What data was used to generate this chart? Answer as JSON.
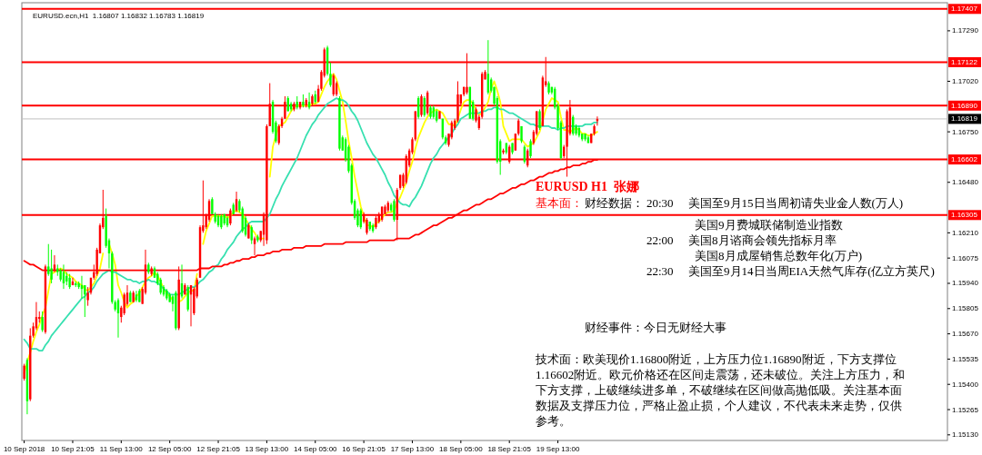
{
  "chart_data": {
    "type": "candlestick",
    "title": "EURUSD.ecn,H1  1.16807 1.16832 1.16783 1.16819",
    "categories": [
      "10 Sep 2018",
      null,
      null,
      null,
      null,
      null,
      null,
      null,
      null,
      null,
      null,
      null,
      null,
      null,
      null,
      null,
      "10 Sep 21:05",
      null,
      null,
      null,
      null,
      null,
      null,
      null,
      null,
      null,
      null,
      null,
      null,
      null,
      null,
      null,
      "11 Sep 13:00",
      null,
      null,
      null,
      null,
      null,
      null,
      null,
      null,
      null,
      null,
      null,
      null,
      null,
      null,
      null,
      "12 Sep 05:00",
      null,
      null,
      null,
      null,
      null,
      null,
      null,
      null,
      null,
      null,
      null,
      null,
      null,
      null,
      null,
      "12 Sep 21:05",
      null,
      null,
      null,
      null,
      null,
      null,
      null,
      null,
      null,
      null,
      null,
      null,
      null,
      null,
      null,
      "13 Sep 13:00",
      null,
      null,
      null,
      null,
      null,
      null,
      null,
      null,
      null,
      null,
      null,
      null,
      null,
      null,
      null,
      "14 Sep 05:00",
      null,
      null,
      null,
      null,
      null,
      null,
      null,
      null,
      null,
      null,
      null,
      null,
      null,
      null,
      null,
      "16 Sep 21:05",
      null,
      null,
      null,
      null,
      null,
      null,
      null,
      null,
      null,
      null,
      null,
      null,
      null,
      null,
      null,
      "17 Sep 13:00",
      null,
      null,
      null,
      null,
      null,
      null,
      null,
      null,
      null,
      null,
      null,
      null,
      null,
      null,
      null,
      "18 Sep 05:00",
      null,
      null,
      null,
      null,
      null,
      null,
      null,
      null,
      null,
      null,
      null,
      null,
      null,
      null,
      null,
      "18 Sep 21:05",
      null,
      null,
      null,
      null,
      null,
      null,
      null,
      null,
      null,
      null,
      null,
      null,
      null,
      null,
      null,
      "19 Sep 13:00",
      null,
      null,
      null,
      null,
      null,
      null,
      null,
      null,
      null,
      null,
      null,
      null,
      null
    ],
    "ohlc": [
      [
        1.1543,
        1.1551,
        1.1542,
        1.155
      ],
      [
        1.1553,
        1.1554,
        1.1524,
        1.1531
      ],
      [
        1.1532,
        1.157,
        1.1531,
        1.1566
      ],
      [
        1.1566,
        1.1573,
        1.1565,
        1.1571
      ],
      [
        1.157,
        1.1584,
        1.1569,
        1.1576
      ],
      [
        1.1575,
        1.1579,
        1.1573,
        1.1576
      ],
      [
        1.1576,
        1.1579,
        1.1568,
        1.1569
      ],
      [
        1.1568,
        1.1604,
        1.1567,
        1.1603
      ],
      [
        1.1603,
        1.1615,
        1.1598,
        1.1599
      ],
      [
        1.1602,
        1.1612,
        1.1594,
        1.1596
      ],
      [
        1.1601,
        1.1609,
        1.16,
        1.1604
      ],
      [
        1.1602,
        1.1604,
        1.1598,
        1.16
      ],
      [
        1.1601,
        1.1602,
        1.1595,
        1.1596
      ],
      [
        1.16,
        1.1604,
        1.1591,
        1.1594
      ],
      [
        1.1598,
        1.16,
        1.1593,
        1.1595
      ],
      [
        1.1597,
        1.1599,
        1.1591,
        1.1592
      ],
      [
        1.1593,
        1.1597,
        1.1593,
        1.1595
      ],
      [
        1.1594,
        1.1595,
        1.1592,
        1.1593
      ],
      [
        1.1594,
        1.1595,
        1.1591,
        1.1592
      ],
      [
        1.1593,
        1.1598,
        1.1586,
        1.1591
      ],
      [
        1.1593,
        1.1593,
        1.1576,
        1.1588
      ],
      [
        1.1585,
        1.1592,
        1.1582,
        1.1589
      ],
      [
        1.1589,
        1.1597,
        1.1588,
        1.1597
      ],
      [
        1.1597,
        1.1604,
        1.1596,
        1.16
      ],
      [
        1.1599,
        1.1613,
        1.1598,
        1.1612
      ],
      [
        1.161,
        1.1626,
        1.161,
        1.1625
      ],
      [
        1.1624,
        1.1644,
        1.1623,
        1.1629
      ],
      [
        1.163,
        1.1634,
        1.1613,
        1.1614
      ],
      [
        1.1617,
        1.1618,
        1.1602,
        1.161
      ],
      [
        1.161,
        1.1611,
        1.1583,
        1.1584
      ],
      [
        1.1584,
        1.1585,
        1.1579,
        1.158
      ],
      [
        1.1585,
        1.1586,
        1.1565,
        1.1578
      ],
      [
        1.1576,
        1.1582,
        1.1573,
        1.1581
      ],
      [
        1.1578,
        1.1589,
        1.1577,
        1.1588
      ],
      [
        1.1583,
        1.1593,
        1.1582,
        1.1589
      ],
      [
        1.1589,
        1.159,
        1.1584,
        1.1584
      ],
      [
        1.1584,
        1.159,
        1.1584,
        1.1589
      ],
      [
        1.1588,
        1.159,
        1.1584,
        1.1585
      ],
      [
        1.159,
        1.1591,
        1.1584,
        1.1584
      ],
      [
        1.1583,
        1.1592,
        1.1583,
        1.1591
      ],
      [
        1.1589,
        1.1612,
        1.1588,
        1.1604
      ],
      [
        1.1604,
        1.1605,
        1.1599,
        1.16
      ],
      [
        1.1599,
        1.1603,
        1.1598,
        1.1602
      ],
      [
        1.1602,
        1.1603,
        1.1597,
        1.1597
      ],
      [
        1.1599,
        1.16,
        1.1593,
        1.1594
      ],
      [
        1.1596,
        1.1597,
        1.1588,
        1.1589
      ],
      [
        1.1592,
        1.1593,
        1.1587,
        1.1588
      ],
      [
        1.159,
        1.1591,
        1.1585,
        1.1586
      ],
      [
        1.1588,
        1.1589,
        1.1584,
        1.1584
      ],
      [
        1.1587,
        1.1588,
        1.1579,
        1.1583
      ],
      [
        1.1589,
        1.159,
        1.1569,
        1.157
      ],
      [
        1.157,
        1.1603,
        1.1569,
        1.1596
      ],
      [
        1.1594,
        1.1604,
        1.1586,
        1.1587
      ],
      [
        1.1588,
        1.1594,
        1.1588,
        1.1593
      ],
      [
        1.1592,
        1.1593,
        1.1579,
        1.158
      ],
      [
        1.1588,
        1.1593,
        1.1571,
        1.1593
      ],
      [
        1.1578,
        1.1592,
        1.1577,
        1.1591
      ],
      [
        1.1587,
        1.1597,
        1.1586,
        1.1596
      ],
      [
        1.1597,
        1.1625,
        1.1597,
        1.1624
      ],
      [
        1.1622,
        1.1649,
        1.1621,
        1.1625
      ],
      [
        1.1624,
        1.1631,
        1.1623,
        1.1631
      ],
      [
        1.1628,
        1.1639,
        1.1627,
        1.1638
      ],
      [
        1.1639,
        1.164,
        1.1631,
        1.1631
      ],
      [
        1.1631,
        1.1632,
        1.1626,
        1.1627
      ],
      [
        1.163,
        1.1631,
        1.1624,
        1.1625
      ],
      [
        1.163,
        1.1631,
        1.1623,
        1.1624
      ],
      [
        1.1631,
        1.1631,
        1.1625,
        1.1626
      ],
      [
        1.1629,
        1.163,
        1.1624,
        1.1625
      ],
      [
        1.1626,
        1.1634,
        1.1625,
        1.1633
      ],
      [
        1.1636,
        1.1637,
        1.1631,
        1.1631
      ],
      [
        1.1633,
        1.1643,
        1.1632,
        1.1639
      ],
      [
        1.1638,
        1.1639,
        1.1632,
        1.1633
      ],
      [
        1.1634,
        1.1635,
        1.1621,
        1.1622
      ],
      [
        1.1629,
        1.163,
        1.1619,
        1.162
      ],
      [
        1.1618,
        1.1626,
        1.1618,
        1.1625
      ],
      [
        1.1624,
        1.1625,
        1.1615,
        1.1617
      ],
      [
        1.1615,
        1.1619,
        1.1609,
        1.1618
      ],
      [
        1.1619,
        1.162,
        1.1616,
        1.1617
      ],
      [
        1.1617,
        1.1622,
        1.1616,
        1.1622
      ],
      [
        1.162,
        1.1632,
        1.1614,
        1.1631
      ],
      [
        1.1617,
        1.1679,
        1.1615,
        1.1678
      ],
      [
        1.1678,
        1.1701,
        1.1678,
        1.169
      ],
      [
        1.1691,
        1.1692,
        1.1674,
        1.1675
      ],
      [
        1.168,
        1.1681,
        1.1669,
        1.167
      ],
      [
        1.1669,
        1.1679,
        1.1668,
        1.1678
      ],
      [
        1.1678,
        1.1683,
        1.1677,
        1.1682
      ],
      [
        1.1682,
        1.1694,
        1.1682,
        1.1691
      ],
      [
        1.1693,
        1.1694,
        1.1686,
        1.1686
      ],
      [
        1.169,
        1.1691,
        1.1686,
        1.1687
      ],
      [
        1.1687,
        1.1691,
        1.1686,
        1.169
      ],
      [
        1.1691,
        1.1694,
        1.1687,
        1.1688
      ],
      [
        1.1688,
        1.1691,
        1.1687,
        1.1691
      ],
      [
        1.1691,
        1.1695,
        1.1688,
        1.1689
      ],
      [
        1.1689,
        1.1693,
        1.1688,
        1.1692
      ],
      [
        1.1691,
        1.1696,
        1.1687,
        1.1688
      ],
      [
        1.169,
        1.1695,
        1.1689,
        1.1694
      ],
      [
        1.1695,
        1.1697,
        1.169,
        1.1691
      ],
      [
        1.1691,
        1.17,
        1.1691,
        1.1698
      ],
      [
        1.1698,
        1.1708,
        1.1697,
        1.1707
      ],
      [
        1.1705,
        1.172,
        1.1704,
        1.1719
      ],
      [
        1.172,
        1.1721,
        1.1705,
        1.1706
      ],
      [
        1.1706,
        1.1712,
        1.1699,
        1.17
      ],
      [
        1.1695,
        1.1706,
        1.1694,
        1.1705
      ],
      [
        1.1695,
        1.1702,
        1.1694,
        1.1701
      ],
      [
        1.1693,
        1.1694,
        1.1665,
        1.1666
      ],
      [
        1.1672,
        1.1673,
        1.1665,
        1.1665
      ],
      [
        1.1671,
        1.1672,
        1.1659,
        1.166
      ],
      [
        1.1667,
        1.1668,
        1.1653,
        1.1654
      ],
      [
        1.1657,
        1.1658,
        1.1636,
        1.1637
      ],
      [
        1.1638,
        1.1639,
        1.1628,
        1.1629
      ],
      [
        1.1633,
        1.1634,
        1.1624,
        1.1625
      ],
      [
        1.1633,
        1.1634,
        1.1623,
        1.1624
      ],
      [
        1.1627,
        1.1632,
        1.1626,
        1.1631
      ],
      [
        1.1621,
        1.1629,
        1.162,
        1.1628
      ],
      [
        1.1627,
        1.1627,
        1.1622,
        1.1623
      ],
      [
        1.1625,
        1.1626,
        1.1621,
        1.1622
      ],
      [
        1.1624,
        1.163,
        1.1623,
        1.1629
      ],
      [
        1.1627,
        1.1632,
        1.1626,
        1.1631
      ],
      [
        1.1628,
        1.1635,
        1.1627,
        1.1635
      ],
      [
        1.1631,
        1.1636,
        1.1631,
        1.1635
      ],
      [
        1.1633,
        1.1638,
        1.1632,
        1.1637
      ],
      [
        1.1636,
        1.1637,
        1.1632,
        1.1633
      ],
      [
        1.1638,
        1.1639,
        1.1627,
        1.1628
      ],
      [
        1.1628,
        1.1645,
        1.1617,
        1.1644
      ],
      [
        1.1645,
        1.1652,
        1.1644,
        1.1652
      ],
      [
        1.1646,
        1.1653,
        1.1645,
        1.1652
      ],
      [
        1.1648,
        1.1663,
        1.1647,
        1.1662
      ],
      [
        1.1657,
        1.1666,
        1.1656,
        1.1665
      ],
      [
        1.1664,
        1.1672,
        1.1663,
        1.1671
      ],
      [
        1.1671,
        1.1686,
        1.167,
        1.1686
      ],
      [
        1.1693,
        1.1694,
        1.1682,
        1.1683
      ],
      [
        1.1684,
        1.1695,
        1.1683,
        1.1694
      ],
      [
        1.1693,
        1.1694,
        1.1683,
        1.1684
      ],
      [
        1.1685,
        1.1697,
        1.1684,
        1.1696
      ],
      [
        1.1688,
        1.1689,
        1.1682,
        1.1683
      ],
      [
        1.1688,
        1.1689,
        1.1682,
        1.1683
      ],
      [
        1.1686,
        1.1687,
        1.168,
        1.1681
      ],
      [
        1.1682,
        1.1686,
        1.1682,
        1.1686
      ],
      [
        1.1682,
        1.1682,
        1.1671,
        1.1672
      ],
      [
        1.1672,
        1.1673,
        1.1668,
        1.1669
      ],
      [
        1.1668,
        1.1674,
        1.1667,
        1.1674
      ],
      [
        1.1672,
        1.1681,
        1.1671,
        1.168
      ],
      [
        1.1677,
        1.1682,
        1.1676,
        1.1681
      ],
      [
        1.1681,
        1.1702,
        1.168,
        1.1695
      ],
      [
        1.169,
        1.1695,
        1.1689,
        1.1695
      ],
      [
        1.1695,
        1.1699,
        1.1694,
        1.1699
      ],
      [
        1.1696,
        1.1717,
        1.1695,
        1.1699
      ],
      [
        1.1699,
        1.1699,
        1.1682,
        1.1682
      ],
      [
        1.1691,
        1.1692,
        1.1681,
        1.1682
      ],
      [
        1.1681,
        1.1688,
        1.168,
        1.1687
      ],
      [
        1.1677,
        1.1684,
        1.1676,
        1.1683
      ],
      [
        1.1683,
        1.1707,
        1.1682,
        1.1706
      ],
      [
        1.1703,
        1.1708,
        1.1703,
        1.1707
      ],
      [
        1.1706,
        1.1724,
        1.1695,
        1.1696
      ],
      [
        1.1703,
        1.1704,
        1.1696,
        1.1697
      ],
      [
        1.1699,
        1.1699,
        1.1689,
        1.169
      ],
      [
        1.1693,
        1.1694,
        1.1658,
        1.1659
      ],
      [
        1.167,
        1.1671,
        1.1652,
        1.1659
      ],
      [
        1.1664,
        1.1666,
        1.1663,
        1.1665
      ],
      [
        1.1669,
        1.1669,
        1.1663,
        1.1664
      ],
      [
        1.1659,
        1.1668,
        1.1658,
        1.1667
      ],
      [
        1.1669,
        1.1669,
        1.1663,
        1.1664
      ],
      [
        1.1665,
        1.1674,
        1.1665,
        1.1674
      ],
      [
        1.1674,
        1.1682,
        1.1673,
        1.1681
      ],
      [
        1.1678,
        1.1678,
        1.1669,
        1.167
      ],
      [
        1.1667,
        1.1668,
        1.1658,
        1.1659
      ],
      [
        1.1657,
        1.1666,
        1.1656,
        1.1665
      ],
      [
        1.167,
        1.1671,
        1.1661,
        1.1662
      ],
      [
        1.1669,
        1.1676,
        1.1668,
        1.1675
      ],
      [
        1.1674,
        1.1686,
        1.1673,
        1.1686
      ],
      [
        1.1686,
        1.1687,
        1.1676,
        1.1677
      ],
      [
        1.1678,
        1.1705,
        1.1678,
        1.1704
      ],
      [
        1.17,
        1.1715,
        1.1699,
        1.1702
      ],
      [
        1.1701,
        1.1702,
        1.1695,
        1.1696
      ],
      [
        1.1699,
        1.1699,
        1.1695,
        1.1696
      ],
      [
        1.1698,
        1.1699,
        1.1687,
        1.1688
      ],
      [
        1.1689,
        1.169,
        1.1676,
        1.1677
      ],
      [
        1.168,
        1.1681,
        1.166,
        1.1661
      ],
      [
        1.1662,
        1.1668,
        1.1661,
        1.1667
      ],
      [
        1.1667,
        1.1687,
        1.1651,
        1.1686
      ],
      [
        1.1674,
        1.1692,
        1.1673,
        1.1688
      ],
      [
        1.1683,
        1.1684,
        1.1673,
        1.1674
      ],
      [
        1.1678,
        1.1679,
        1.1673,
        1.1674
      ],
      [
        1.1677,
        1.1678,
        1.1672,
        1.1673
      ],
      [
        1.1674,
        1.1674,
        1.167,
        1.1671
      ],
      [
        1.1674,
        1.1674,
        1.167,
        1.1671
      ],
      [
        1.1672,
        1.1673,
        1.1669,
        1.1669
      ],
      [
        1.1669,
        1.1674,
        1.1669,
        1.1674
      ],
      [
        1.1674,
        1.1679,
        1.1673,
        1.1678
      ],
      [
        1.16807,
        1.16832,
        1.16783,
        1.16819
      ]
    ],
    "colors": [
      "#ff0000",
      "#00ff00",
      "#ff0000",
      "#ff0000",
      "#ff0000",
      "#ff0000",
      "#00ff00",
      "#ff0000",
      "#00ff00",
      "#00ff00",
      "#ff0000",
      "#00ff00",
      "#00ff00",
      "#00ff00",
      "#00ff00",
      "#00ff00",
      "#ff0000",
      "#00ff00",
      "#00ff00",
      "#00ff00",
      "#00ff00",
      "#ff0000",
      "#ff0000",
      "#ff0000",
      "#ff0000",
      "#ff0000",
      "#ff0000",
      "#00ff00",
      "#00ff00",
      "#00ff00",
      "#00ff00",
      "#00ff00",
      "#ff0000",
      "#ff0000",
      "#ff0000",
      "#00ff00",
      "#ff0000",
      "#00ff00",
      "#00ff00",
      "#ff0000",
      "#ff0000",
      "#00ff00",
      "#ff0000",
      "#00ff00",
      "#00ff00",
      "#00ff00",
      "#00ff00",
      "#00ff00",
      "#00ff00",
      "#00ff00",
      "#00ff00",
      "#ff0000",
      "#00ff00",
      "#ff0000",
      "#00ff00",
      "#ff0000",
      "#ff0000",
      "#ff0000",
      "#ff0000",
      "#ff0000",
      "#ff0000",
      "#ff0000",
      "#00ff00",
      "#00ff00",
      "#00ff00",
      "#00ff00",
      "#00ff00",
      "#00ff00",
      "#ff0000",
      "#00ff00",
      "#ff0000",
      "#00ff00",
      "#00ff00",
      "#00ff00",
      "#ff0000",
      "#00ff00",
      "#ff0000",
      "#00ff00",
      "#ff0000",
      "#ff0000",
      "#ff0000",
      "#ff0000",
      "#00ff00",
      "#00ff00",
      "#ff0000",
      "#ff0000",
      "#ff0000",
      "#00ff00",
      "#00ff00",
      "#ff0000",
      "#00ff00",
      "#ff0000",
      "#00ff00",
      "#ff0000",
      "#00ff00",
      "#ff0000",
      "#00ff00",
      "#ff0000",
      "#ff0000",
      "#ff0000",
      "#00ff00",
      "#00ff00",
      "#ff0000",
      "#ff0000",
      "#00ff00",
      "#00ff00",
      "#00ff00",
      "#00ff00",
      "#00ff00",
      "#00ff00",
      "#00ff00",
      "#00ff00",
      "#ff0000",
      "#ff0000",
      "#00ff00",
      "#00ff00",
      "#ff0000",
      "#ff0000",
      "#ff0000",
      "#ff0000",
      "#ff0000",
      "#00ff00",
      "#00ff00",
      "#ff0000",
      "#ff0000",
      "#ff0000",
      "#ff0000",
      "#ff0000",
      "#ff0000",
      "#ff0000",
      "#00ff00",
      "#ff0000",
      "#00ff00",
      "#ff0000",
      "#00ff00",
      "#00ff00",
      "#00ff00",
      "#ff0000",
      "#00ff00",
      "#00ff00",
      "#ff0000",
      "#ff0000",
      "#ff0000",
      "#ff0000",
      "#ff0000",
      "#ff0000",
      "#ff0000",
      "#00ff00",
      "#00ff00",
      "#ff0000",
      "#ff0000",
      "#ff0000",
      "#ff0000",
      "#00ff00",
      "#00ff00",
      "#00ff00",
      "#00ff00",
      "#00ff00",
      "#ff0000",
      "#00ff00",
      "#ff0000",
      "#00ff00",
      "#ff0000",
      "#ff0000",
      "#00ff00",
      "#00ff00",
      "#ff0000",
      "#00ff00",
      "#ff0000",
      "#ff0000",
      "#00ff00",
      "#ff0000",
      "#ff0000",
      "#00ff00",
      "#00ff00",
      "#00ff00",
      "#00ff00",
      "#00ff00",
      "#ff0000",
      "#ff0000",
      "#ff0000",
      "#00ff00",
      "#00ff00",
      "#00ff00",
      "#00ff00",
      "#00ff00",
      "#00ff00",
      "#ff0000",
      "#ff0000",
      "#ff0000"
    ],
    "series": [
      {
        "type": "line",
        "color": "#ffff00",
        "values": [
          1.1546,
          1.1552,
          1.1557,
          1.1563,
          1.1568,
          1.1572,
          1.1577,
          1.1581,
          1.159,
          1.1599,
          1.16,
          1.1601,
          1.1602,
          1.1601,
          1.1599,
          1.1598,
          1.1597,
          1.1595,
          1.1594,
          1.1593,
          1.1591,
          1.159,
          1.1592,
          1.1594,
          1.1598,
          1.1602,
          1.161,
          null,
          1.1615,
          1.161,
          1.1604,
          1.1593,
          1.1589,
          1.1584,
          1.1581,
          1.1583,
          1.1584,
          1.1587,
          1.1589,
          1.1592,
          1.1595,
          1.1597,
          1.1598,
          1.16,
          1.1598,
          1.1595,
          1.1591,
          1.1589,
          1.1587,
          1.1585,
          null,
          1.1584,
          1.1585,
          1.1587,
          1.1589,
          1.159,
          1.159,
          1.1599,
          null,
          1.1615,
          1.1622,
          1.1626,
          1.163,
          1.163,
          1.163,
          1.163,
          1.163,
          1.1629,
          1.163,
          1.1632,
          1.1633,
          1.1632,
          1.1631,
          1.1628,
          1.1626,
          1.1623,
          1.1621,
          1.1618,
          1.1618,
          1.1618,
          null,
          1.1651,
          1.1667,
          1.1673,
          1.1678,
          1.1679,
          1.168,
          1.1683,
          1.1686,
          1.1688,
          1.1689,
          1.1689,
          1.1689,
          1.1689,
          1.1689,
          1.169,
          1.169,
          1.1691,
          1.1695,
          1.1699,
          1.1702,
          1.1704,
          1.1706,
          1.1703,
          1.1697,
          1.1691,
          1.1681,
          1.167,
          1.1661,
          1.1651,
          1.1643,
          1.1635,
          1.163,
          1.1625,
          1.1625,
          1.1624,
          1.1626,
          1.1627,
          1.1629,
          1.1631,
          1.1632,
          1.1632,
          1.1633,
          1.1637,
          1.164,
          1.1644,
          1.1648,
          1.1654,
          1.1659,
          1.1666,
          1.1672,
          1.1676,
          1.168,
          1.1683,
          1.1685,
          1.1686,
          1.1687,
          1.1686,
          1.1685,
          1.1682,
          1.1679,
          1.1679,
          1.1678,
          1.1682,
          1.1687,
          1.1691,
          1.1692,
          1.1692,
          1.169,
          1.1687,
          1.1684,
          1.1685,
          1.1688,
          1.1691,
          1.1698,
          1.1702,
          1.1697,
          1.1691,
          1.1678,
          1.1674,
          1.167,
          1.1671,
          1.1671,
          1.1671,
          1.1671,
          1.1669,
          1.1667,
          1.1668,
          1.1669,
          1.1672,
          1.1675,
          1.1681,
          1.1687,
          1.169,
          1.1693,
          1.1692,
          1.1691,
          1.1683,
          1.1676,
          1.1676,
          1.1675,
          1.1676,
          1.1677,
          1.1676,
          1.1674,
          1.1674,
          1.1673,
          1.1673,
          1.1674,
          1.1675
        ]
      },
      {
        "type": "line",
        "color": "#36e0b0",
        "values": [
          1.1564,
          1.1562,
          1.1559,
          1.1559,
          1.1559,
          1.1558,
          1.1558,
          1.1561,
          1.1563,
          1.1566,
          1.1568,
          1.157,
          1.1572,
          1.1574,
          1.1576,
          1.1578,
          1.158,
          1.1582,
          1.1584,
          1.1586,
          1.1587,
          1.1589,
          1.159,
          1.1592,
          1.1595,
          1.1597,
          1.1599,
          1.16,
          1.1601,
          1.16,
          1.16,
          1.1599,
          1.1598,
          1.1597,
          1.1596,
          1.1596,
          1.1595,
          1.1595,
          1.1594,
          1.1595,
          1.1595,
          1.1596,
          1.1595,
          1.1595,
          1.1594,
          1.1593,
          1.1591,
          1.159,
          1.1588,
          1.1588,
          1.1588,
          1.1588,
          1.1589,
          1.159,
          1.1591,
          1.1592,
          1.1592,
          1.1593,
          1.1595,
          1.1596,
          1.1598,
          1.16,
          1.1601,
          1.1603,
          1.1604,
          1.1607,
          1.1609,
          1.1612,
          1.1614,
          1.1616,
          1.1619,
          1.1621,
          1.1623,
          1.1624,
          1.1626,
          1.1627,
          1.1627,
          1.1627,
          1.1627,
          1.1627,
          1.1629,
          1.1631,
          1.1635,
          1.1639,
          1.1642,
          1.1646,
          1.1649,
          1.1652,
          1.1655,
          1.1658,
          1.1661,
          1.1665,
          1.1669,
          1.1673,
          1.1676,
          1.1679,
          1.1681,
          1.1684,
          1.1686,
          1.1688,
          1.169,
          1.1691,
          1.1692,
          1.1693,
          1.1692,
          1.1692,
          1.1691,
          1.1689,
          1.1686,
          1.1684,
          1.1681,
          1.1677,
          1.1673,
          1.1669,
          1.1666,
          1.1663,
          1.1661,
          1.1658,
          1.1655,
          1.1652,
          1.1648,
          1.1645,
          1.1641,
          1.1639,
          1.1637,
          1.1636,
          1.1636,
          1.1635,
          1.1638,
          1.164,
          1.1643,
          1.1646,
          1.165,
          1.1654,
          1.1658,
          1.1661,
          1.1663,
          1.1666,
          1.1668,
          1.167,
          1.1672,
          1.1674,
          1.1677,
          1.1679,
          1.1682,
          1.1683,
          1.1684,
          1.1685,
          1.1685,
          1.1685,
          1.1685,
          1.1686,
          1.1686,
          1.1687,
          1.1687,
          1.1688,
          1.1688,
          1.1687,
          1.1687,
          1.1686,
          1.1685,
          1.1685,
          1.1684,
          1.1683,
          1.1682,
          1.1681,
          1.168,
          1.1679,
          1.1679,
          1.1678,
          1.1678,
          1.1678,
          1.1678,
          1.1678,
          1.1677,
          1.1677,
          1.1676,
          1.1677,
          1.1677,
          1.1678,
          1.1678,
          1.1678,
          1.1678,
          1.1678,
          1.1678,
          1.1679,
          1.1679,
          1.1679,
          1.168,
          1.168
        ]
      },
      {
        "type": "line",
        "color": "#ff0000",
        "values": [
          1.1606,
          1.1605,
          1.1604,
          1.1604,
          1.1603,
          1.1602,
          1.1601,
          1.1601,
          1.1601,
          1.1601,
          1.1601,
          1.1601,
          1.1601,
          1.1601,
          1.1601,
          1.1601,
          1.1601,
          1.1601,
          1.1601,
          1.1601,
          1.1601,
          1.1601,
          1.1601,
          1.1601,
          1.1601,
          1.1601,
          1.1601,
          1.1601,
          1.1601,
          1.1601,
          1.1601,
          1.1601,
          1.1601,
          1.1601,
          1.1601,
          1.1601,
          1.1601,
          1.1601,
          1.1601,
          1.1601,
          1.1601,
          1.1601,
          1.1601,
          1.1601,
          1.1601,
          1.1601,
          1.1601,
          1.1601,
          1.1601,
          1.1601,
          1.1601,
          1.1601,
          1.1601,
          1.1601,
          1.1601,
          1.1601,
          1.1601,
          1.1601,
          1.1602,
          1.1602,
          1.1602,
          1.1602,
          1.1603,
          1.1603,
          1.1603,
          1.1603,
          1.1604,
          1.1604,
          1.1605,
          1.1605,
          1.1606,
          1.1606,
          1.1607,
          1.1607,
          1.1607,
          1.1608,
          1.1608,
          1.1609,
          1.1609,
          1.1609,
          1.161,
          1.161,
          1.1611,
          1.1611,
          1.1611,
          1.1612,
          1.1612,
          1.1612,
          1.1612,
          1.1613,
          1.1613,
          1.1613,
          1.1613,
          1.1614,
          1.1614,
          1.1614,
          1.1614,
          1.1614,
          1.1614,
          1.1615,
          1.1615,
          1.1615,
          1.1615,
          1.1615,
          1.1615,
          1.1615,
          1.1616,
          1.1616,
          1.1616,
          1.1616,
          1.1616,
          1.1616,
          1.1616,
          1.1616,
          1.1617,
          1.1617,
          1.1617,
          1.1617,
          1.1617,
          1.1617,
          1.1617,
          1.1617,
          1.1617,
          1.1618,
          1.1618,
          1.1618,
          1.1618,
          1.1618,
          1.1619,
          1.162,
          1.162,
          1.1621,
          1.1622,
          1.1623,
          1.1624,
          1.1625,
          1.1625,
          1.1626,
          1.1627,
          1.1628,
          1.1629,
          1.1629,
          1.163,
          1.1631,
          1.1632,
          1.1633,
          1.1633,
          1.1634,
          1.1635,
          1.1636,
          1.1636,
          1.1637,
          1.1638,
          1.1639,
          1.1639,
          1.164,
          1.1641,
          1.1642,
          1.1642,
          1.1643,
          1.1644,
          1.1645,
          1.1645,
          1.1646,
          1.1647,
          1.1647,
          1.1648,
          1.1649,
          1.1649,
          1.165,
          1.1651,
          1.1651,
          1.1652,
          1.1653,
          1.1653,
          1.1654,
          1.1654,
          1.1655,
          1.1655,
          1.1656,
          1.1656,
          1.1657,
          1.1657,
          1.1657,
          1.1658,
          1.1658,
          1.1659,
          1.1659,
          1.166,
          1.166
        ]
      }
    ],
    "ylim": [
      1.151,
      1.1744
    ],
    "yticks": [
      {
        "value": 1.1513,
        "label": "1.15130"
      },
      {
        "value": 1.15265,
        "label": "1.15265"
      },
      {
        "value": 1.154,
        "label": "1.15400"
      },
      {
        "value": 1.15535,
        "label": "1.15535"
      },
      {
        "value": 1.1567,
        "label": "1.15670"
      },
      {
        "value": 1.15805,
        "label": "1.15805"
      },
      {
        "value": 1.1594,
        "label": "1.15940"
      },
      {
        "value": 1.16075,
        "label": "1.16075"
      },
      {
        "value": 1.1621,
        "label": "1.16210"
      },
      {
        "value": 1.1648,
        "label": "1.16480"
      },
      {
        "value": 1.1675,
        "label": "1.16750"
      },
      {
        "value": 1.1702,
        "label": "1.17020"
      },
      {
        "value": 1.1729,
        "label": "1.17290"
      }
    ],
    "ref_lines": [
      {
        "axis": "y",
        "value": 1.17407,
        "label": "1.17407",
        "color": "#ff0000"
      },
      {
        "axis": "y",
        "value": 1.17122,
        "label": "1.17122",
        "color": "#ff0000"
      },
      {
        "axis": "y",
        "value": 1.1689,
        "label": "1.16890",
        "color": "#ff0000"
      },
      {
        "axis": "y",
        "value": 1.16819,
        "label": "1.16819",
        "color": "#c0c0c0"
      },
      {
        "axis": "y",
        "value": 1.16602,
        "label": "1.16602",
        "color": "#ff0000"
      },
      {
        "axis": "y",
        "value": 1.16305,
        "label": "1.16305",
        "color": "#ff0000"
      }
    ],
    "annotations": [
      "EURUSD H1  张娜",
      "基本面：",
      "财经数据：",
      "20:30",
      "美国至9月15日当周初请失业金人数(万人)",
      "美国9月费城联储制造业指数",
      "22:00",
      "美国8月谘商会领先指标月率",
      "美国8月成屋销售总数年化(万户)",
      "22:30",
      "美国至9月14日当周EIA天然气库存(亿立方英尺)",
      "财经事件：今日无财经大事",
      "技术面：欧美现价1.16800附近，上方压力位1.16890附近，下方支撑位1.16602附近。欧元价格还在区间走震荡，还未破位。关注上方压力，和下方支撑，上破继续进多单，不破继续在区间做高抛低吸。关注基本面数据及支撑压力位，严格止盈止损，个人建议，不代表未来走势，仅供参考。"
    ]
  }
}
